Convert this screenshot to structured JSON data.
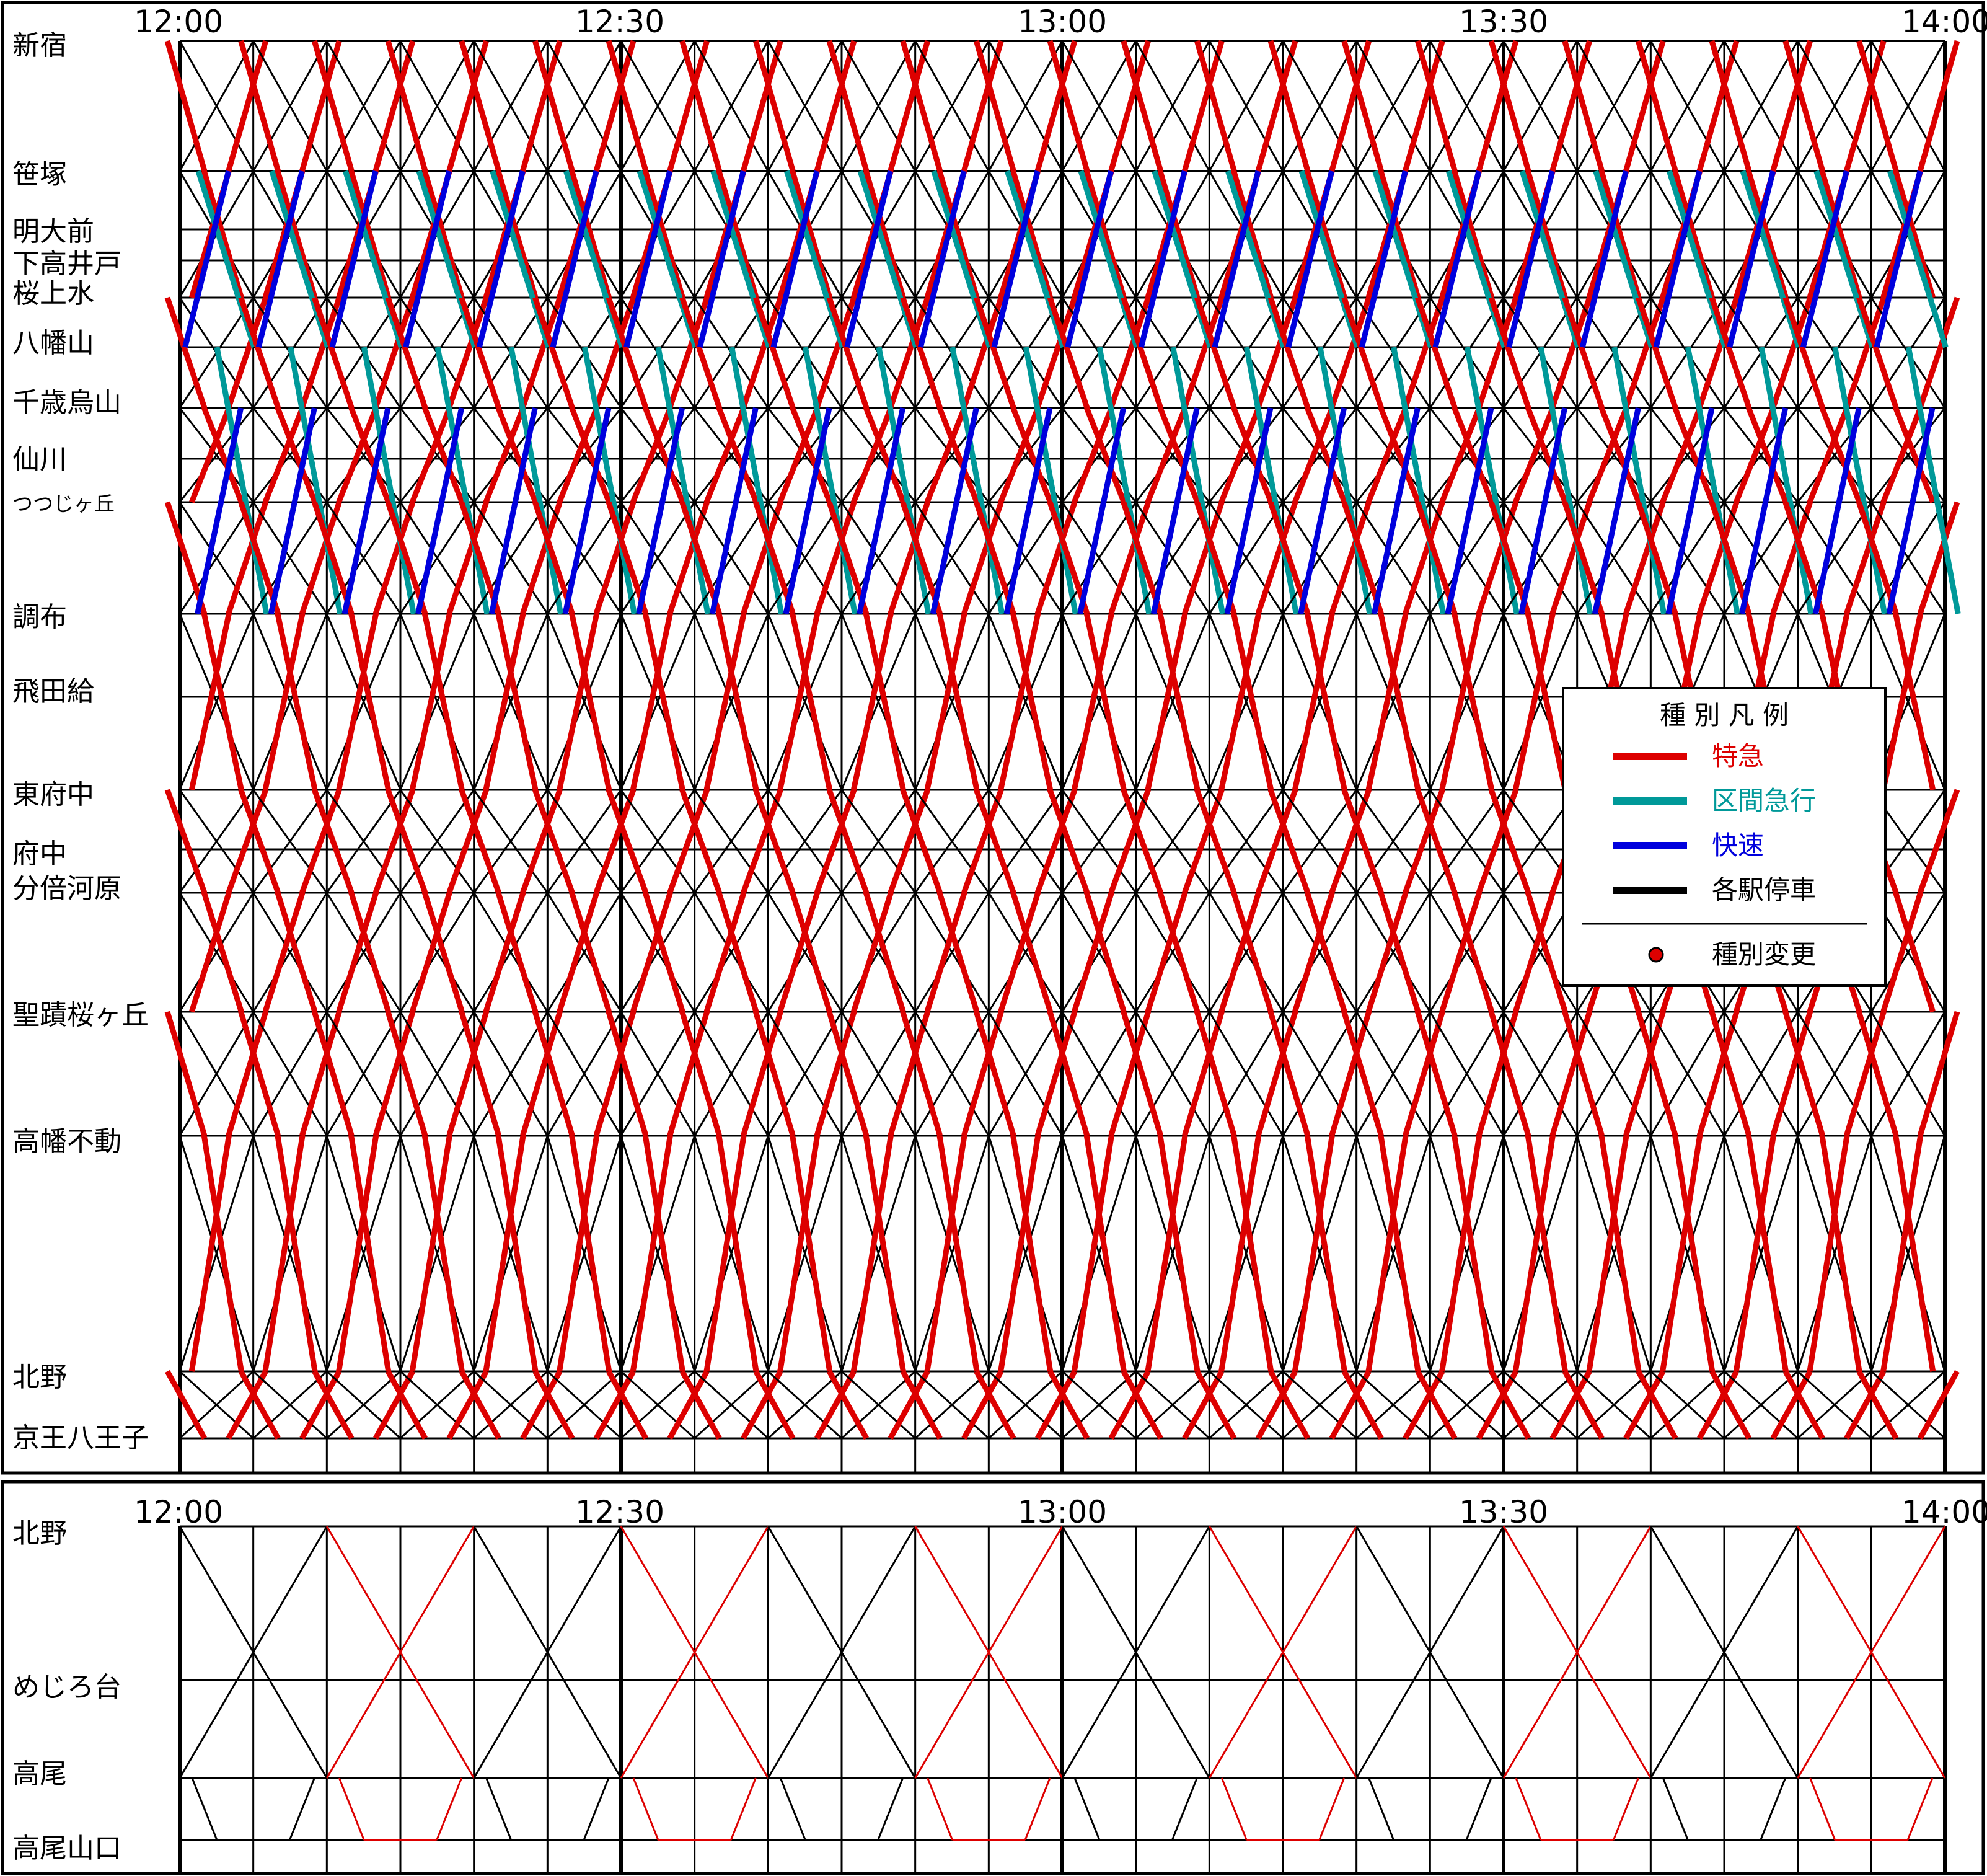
{
  "upper_panel": {
    "time_labels": [
      "12:00",
      "12:30",
      "13:00",
      "13:30",
      "14:00"
    ],
    "stations": [
      "新宿",
      "笹塚",
      "明大前",
      "下高井戸",
      "桜上水",
      "八幡山",
      "千歳烏山",
      "仙川",
      "つつじヶ丘",
      "調布",
      "飛田給",
      "東府中",
      "府中",
      "分倍河原",
      "聖蹟桜ヶ丘",
      "高幡不動",
      "北野",
      "京王八王子"
    ]
  },
  "lower_panel": {
    "time_labels": [
      "12:00",
      "12:30",
      "13:00",
      "13:30",
      "14:00"
    ],
    "stations": [
      "北野",
      "めじろ台",
      "高尾",
      "高尾山口"
    ]
  },
  "legend": {
    "title": "種 別 凡 例",
    "items": [
      {
        "label": "特急",
        "color": "#dd0000"
      },
      {
        "label": "区間急行",
        "color": "#009999"
      },
      {
        "label": "快速",
        "color": "#0000dd"
      },
      {
        "label": "各駅停車",
        "color": "#000000"
      }
    ],
    "marker_label": "種別変更",
    "marker_color": "#dd0000"
  }
}
